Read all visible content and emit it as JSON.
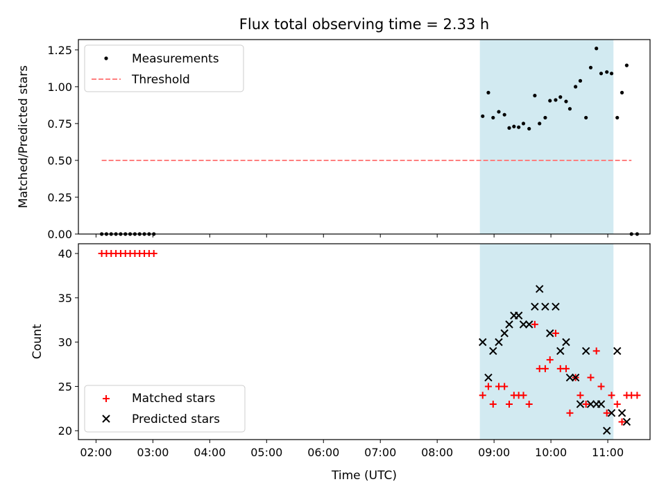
{
  "chart_data": [
    {
      "type": "scatter",
      "title": "Flux total observing time = 2.33 h",
      "xlabel": "",
      "ylabel": "Matched/Predicted stars",
      "ylim": [
        0,
        1.32
      ],
      "yticks": [
        0.0,
        0.25,
        0.5,
        0.75,
        1.0,
        1.25
      ],
      "ytick_labels": [
        "0.00",
        "0.25",
        "0.50",
        "0.75",
        "1.00",
        "1.25"
      ],
      "shaded_span": {
        "from": "08:45",
        "to": "11:06",
        "color": "#add8e6"
      },
      "legend": {
        "placement": "top-left",
        "entries": [
          "Measurements",
          "Threshold"
        ]
      },
      "series": [
        {
          "name": "Measurements",
          "color": "#000000",
          "marker": "dot",
          "points": [
            [
              "02:06",
              0
            ],
            [
              "02:11",
              0
            ],
            [
              "02:16",
              0
            ],
            [
              "02:21",
              0
            ],
            [
              "02:26",
              0
            ],
            [
              "02:31",
              0
            ],
            [
              "02:36",
              0
            ],
            [
              "02:41",
              0
            ],
            [
              "02:46",
              0
            ],
            [
              "02:51",
              0
            ],
            [
              "02:56",
              0
            ],
            [
              "03:01",
              0
            ],
            [
              "08:48",
              0.8
            ],
            [
              "08:54",
              0.96
            ],
            [
              "08:59",
              0.79
            ],
            [
              "09:05",
              0.83
            ],
            [
              "09:11",
              0.81
            ],
            [
              "09:16",
              0.72
            ],
            [
              "09:21",
              0.73
            ],
            [
              "09:26",
              0.725
            ],
            [
              "09:31",
              0.75
            ],
            [
              "09:37",
              0.715
            ],
            [
              "09:43",
              0.94
            ],
            [
              "09:48",
              0.75
            ],
            [
              "09:54",
              0.79
            ],
            [
              "09:59",
              0.905
            ],
            [
              "10:05",
              0.91
            ],
            [
              "10:10",
              0.93
            ],
            [
              "10:16",
              0.9
            ],
            [
              "10:20",
              0.85
            ],
            [
              "10:26",
              1.0
            ],
            [
              "10:31",
              1.04
            ],
            [
              "10:37",
              0.79
            ],
            [
              "10:42",
              1.13
            ],
            [
              "10:48",
              1.26
            ],
            [
              "10:53",
              1.09
            ],
            [
              "10:59",
              1.1
            ],
            [
              "11:04",
              1.09
            ],
            [
              "11:10",
              0.79
            ],
            [
              "11:15",
              0.96
            ],
            [
              "11:20",
              1.145
            ],
            [
              "11:25",
              0
            ],
            [
              "11:31",
              0
            ]
          ]
        },
        {
          "name": "Threshold",
          "color": "#ff7f7f",
          "style": "dashed",
          "x": [
            "02:06",
            "11:25"
          ],
          "y": [
            0.5,
            0.5
          ]
        }
      ]
    },
    {
      "type": "scatter",
      "title": "",
      "xlabel": "Time (UTC)",
      "ylabel": "Count",
      "ylim": [
        19,
        41.1
      ],
      "yticks": [
        20,
        25,
        30,
        35,
        40
      ],
      "ytick_labels": [
        "20",
        "25",
        "30",
        "35",
        "40"
      ],
      "xticks": [
        "02:00",
        "03:00",
        "04:00",
        "05:00",
        "06:00",
        "07:00",
        "08:00",
        "09:00",
        "10:00",
        "11:00"
      ],
      "shaded_span": {
        "from": "08:45",
        "to": "11:06",
        "color": "#add8e6"
      },
      "legend": {
        "placement": "bottom-left",
        "entries": [
          "Matched stars",
          "Predicted stars"
        ]
      },
      "series": [
        {
          "name": "Matched stars",
          "color": "#ff0000",
          "marker": "plus",
          "points": [
            [
              "02:06",
              40
            ],
            [
              "02:11",
              40
            ],
            [
              "02:16",
              40
            ],
            [
              "02:21",
              40
            ],
            [
              "02:26",
              40
            ],
            [
              "02:31",
              40
            ],
            [
              "02:36",
              40
            ],
            [
              "02:41",
              40
            ],
            [
              "02:46",
              40
            ],
            [
              "02:51",
              40
            ],
            [
              "02:56",
              40
            ],
            [
              "03:01",
              40
            ],
            [
              "08:48",
              24
            ],
            [
              "08:54",
              25
            ],
            [
              "08:59",
              23
            ],
            [
              "09:05",
              25
            ],
            [
              "09:11",
              25
            ],
            [
              "09:16",
              23
            ],
            [
              "09:21",
              24
            ],
            [
              "09:26",
              24
            ],
            [
              "09:31",
              24
            ],
            [
              "09:37",
              23
            ],
            [
              "09:43",
              32
            ],
            [
              "09:48",
              27
            ],
            [
              "09:54",
              27
            ],
            [
              "09:59",
              28
            ],
            [
              "10:05",
              31
            ],
            [
              "10:10",
              27
            ],
            [
              "10:16",
              27
            ],
            [
              "10:20",
              22
            ],
            [
              "10:26",
              26
            ],
            [
              "10:31",
              24
            ],
            [
              "10:37",
              23
            ],
            [
              "10:42",
              26
            ],
            [
              "10:48",
              29
            ],
            [
              "10:53",
              25
            ],
            [
              "10:59",
              22
            ],
            [
              "11:04",
              24
            ],
            [
              "11:10",
              23
            ],
            [
              "11:15",
              21
            ],
            [
              "11:20",
              24
            ],
            [
              "11:25",
              24
            ],
            [
              "11:31",
              24
            ]
          ]
        },
        {
          "name": "Predicted stars",
          "color": "#000000",
          "marker": "x",
          "points": [
            [
              "08:48",
              30
            ],
            [
              "08:54",
              26
            ],
            [
              "08:59",
              29
            ],
            [
              "09:05",
              30
            ],
            [
              "09:11",
              31
            ],
            [
              "09:16",
              32
            ],
            [
              "09:21",
              33
            ],
            [
              "09:26",
              33
            ],
            [
              "09:31",
              32
            ],
            [
              "09:37",
              32
            ],
            [
              "09:43",
              34
            ],
            [
              "09:48",
              36
            ],
            [
              "09:54",
              34
            ],
            [
              "09:59",
              31
            ],
            [
              "10:05",
              34
            ],
            [
              "10:10",
              29
            ],
            [
              "10:16",
              30
            ],
            [
              "10:20",
              26
            ],
            [
              "10:26",
              26
            ],
            [
              "10:31",
              23
            ],
            [
              "10:37",
              29
            ],
            [
              "10:42",
              23
            ],
            [
              "10:48",
              23
            ],
            [
              "10:53",
              23
            ],
            [
              "10:59",
              20
            ],
            [
              "11:04",
              22
            ],
            [
              "11:10",
              29
            ],
            [
              "11:15",
              22
            ],
            [
              "11:20",
              21
            ]
          ]
        }
      ]
    }
  ]
}
